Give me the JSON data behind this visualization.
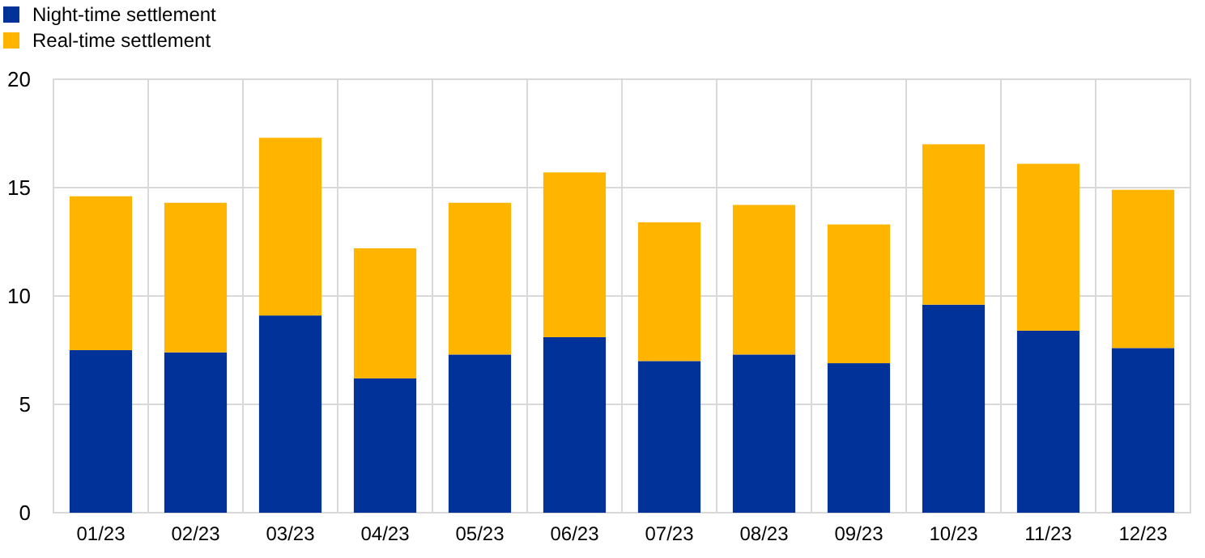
{
  "chart_data": {
    "type": "bar",
    "stacked": true,
    "categories": [
      "01/23",
      "02/23",
      "03/23",
      "04/23",
      "05/23",
      "06/23",
      "07/23",
      "08/23",
      "09/23",
      "10/23",
      "11/23",
      "12/23"
    ],
    "series": [
      {
        "name": "Night-time settlement",
        "color": "#003299",
        "values": [
          7.5,
          7.4,
          9.1,
          6.2,
          7.3,
          8.1,
          7.0,
          7.3,
          6.9,
          9.6,
          8.4,
          7.6
        ]
      },
      {
        "name": "Real-time settlement",
        "color": "#ffb400",
        "values": [
          7.1,
          6.9,
          8.2,
          6.0,
          7.0,
          7.6,
          6.4,
          6.9,
          6.4,
          7.4,
          7.7,
          7.3
        ]
      }
    ],
    "ylim": [
      0,
      20
    ],
    "yticks": [
      0,
      5,
      10,
      15,
      20
    ],
    "grid": true,
    "legend": "top left"
  }
}
